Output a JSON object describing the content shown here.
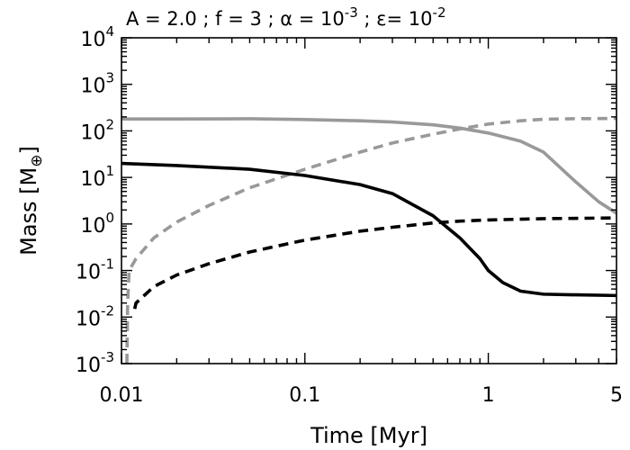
{
  "chart_data": {
    "type": "line",
    "title": {
      "parts": [
        {
          "text": "A = 2.0 ; f = 3 ; α = 10"
        },
        {
          "text": "-3",
          "sup": true
        },
        {
          "text": " ;  ε= 10"
        },
        {
          "text": "-2",
          "sup": true
        }
      ]
    },
    "xlabel": "Time [Myr]",
    "ylabel": {
      "base": "Mass [M",
      "sub": "⊕",
      "close": "]"
    },
    "xscale": "log",
    "yscale": "log",
    "xlim": [
      0.01,
      5
    ],
    "ylim": [
      0.001,
      10000
    ],
    "x_ticks": [
      {
        "value": 0.01,
        "label": "0.01"
      },
      {
        "value": 0.1,
        "label": "0.1"
      },
      {
        "value": 1,
        "label": "1"
      },
      {
        "value": 5,
        "label": "5"
      }
    ],
    "y_ticks": [
      {
        "value": 0.001,
        "base": "10",
        "exp": "-3"
      },
      {
        "value": 0.01,
        "base": "10",
        "exp": "-2"
      },
      {
        "value": 0.1,
        "base": "10",
        "exp": "-1"
      },
      {
        "value": 1,
        "base": "10",
        "exp": "0"
      },
      {
        "value": 10,
        "base": "10",
        "exp": "1"
      },
      {
        "value": 100,
        "base": "10",
        "exp": "2"
      },
      {
        "value": 1000,
        "base": "10",
        "exp": "3"
      },
      {
        "value": 10000,
        "base": "10",
        "exp": "4"
      }
    ],
    "grid": false,
    "legend": null,
    "series": [
      {
        "name": "gray-solid",
        "color": "#999999",
        "dash": "solid",
        "points": [
          [
            0.01,
            180
          ],
          [
            0.02,
            180
          ],
          [
            0.05,
            182
          ],
          [
            0.1,
            175
          ],
          [
            0.2,
            165
          ],
          [
            0.3,
            155
          ],
          [
            0.5,
            135
          ],
          [
            0.7,
            115
          ],
          [
            1.0,
            90
          ],
          [
            1.5,
            60
          ],
          [
            2.0,
            35
          ],
          [
            3.0,
            8
          ],
          [
            4.0,
            3
          ],
          [
            5.0,
            1.7
          ]
        ]
      },
      {
        "name": "gray-dashed",
        "color": "#999999",
        "dash": "dashed",
        "points": [
          [
            0.0107,
            0.001
          ],
          [
            0.0108,
            0.02
          ],
          [
            0.011,
            0.1
          ],
          [
            0.012,
            0.18
          ],
          [
            0.015,
            0.5
          ],
          [
            0.02,
            1.1
          ],
          [
            0.03,
            2.5
          ],
          [
            0.05,
            6
          ],
          [
            0.1,
            15
          ],
          [
            0.2,
            35
          ],
          [
            0.3,
            55
          ],
          [
            0.5,
            85
          ],
          [
            0.7,
            110
          ],
          [
            1.0,
            140
          ],
          [
            1.5,
            165
          ],
          [
            2.0,
            178
          ],
          [
            3.0,
            183
          ],
          [
            5.0,
            185
          ]
        ]
      },
      {
        "name": "black-solid",
        "color": "#000000",
        "dash": "solid",
        "points": [
          [
            0.01,
            20
          ],
          [
            0.02,
            18
          ],
          [
            0.05,
            15
          ],
          [
            0.1,
            11
          ],
          [
            0.2,
            7
          ],
          [
            0.3,
            4.5
          ],
          [
            0.5,
            1.5
          ],
          [
            0.7,
            0.5
          ],
          [
            0.9,
            0.18
          ],
          [
            1.0,
            0.1
          ],
          [
            1.2,
            0.055
          ],
          [
            1.5,
            0.036
          ],
          [
            2.0,
            0.031
          ],
          [
            3.0,
            0.03
          ],
          [
            5.0,
            0.029
          ]
        ]
      },
      {
        "name": "black-dashed",
        "color": "#000000",
        "dash": "dashed",
        "points": [
          [
            0.0118,
            0.015
          ],
          [
            0.012,
            0.02
          ],
          [
            0.015,
            0.045
          ],
          [
            0.02,
            0.08
          ],
          [
            0.03,
            0.14
          ],
          [
            0.05,
            0.25
          ],
          [
            0.1,
            0.45
          ],
          [
            0.2,
            0.7
          ],
          [
            0.3,
            0.85
          ],
          [
            0.5,
            1.05
          ],
          [
            0.7,
            1.15
          ],
          [
            1.0,
            1.22
          ],
          [
            2.0,
            1.3
          ],
          [
            5.0,
            1.35
          ]
        ]
      }
    ]
  }
}
